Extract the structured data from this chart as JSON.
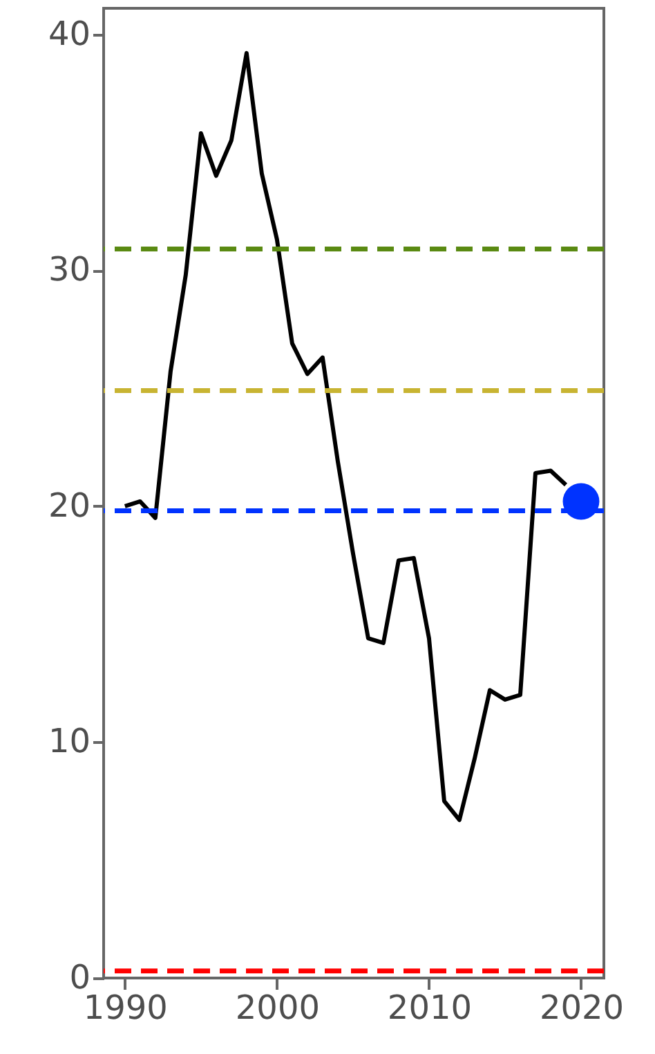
{
  "chart_data": {
    "type": "line",
    "x": [
      1990,
      1991,
      1992,
      1993,
      1994,
      1995,
      1996,
      1997,
      1998,
      1999,
      2000,
      2001,
      2002,
      2003,
      2004,
      2005,
      2006,
      2007,
      2008,
      2009,
      2010,
      2011,
      2012,
      2013,
      2014,
      2015,
      2016,
      2017,
      2018,
      2019
    ],
    "series": [
      {
        "color": "#000000",
        "values": [
          20.0,
          20.2,
          19.5,
          25.7,
          29.8,
          35.8,
          34.0,
          35.5,
          39.2,
          34.1,
          31.3,
          26.9,
          25.6,
          26.3,
          21.9,
          18.0,
          14.4,
          14.2,
          17.7,
          17.8,
          14.4,
          7.5,
          6.7,
          9.3,
          12.2,
          11.8,
          12.0,
          21.4,
          21.5,
          20.9
        ]
      },
      {
        "type": "scatter",
        "marker": "circle",
        "color": "#0033ff",
        "x": [
          2020
        ],
        "values": [
          20.2
        ]
      }
    ],
    "xlim": [
      1988.6,
      2021.5
    ],
    "xticks": [
      1990,
      2000,
      2010,
      2020
    ],
    "ylim": [
      0,
      41.1
    ],
    "yticks": [
      0,
      10,
      20,
      30,
      40
    ],
    "marker": "none",
    "line_style": "solid",
    "ref_lines": [
      {
        "axis": "y",
        "value": 30.9,
        "color": "#5a8a12",
        "line_style": "dashed"
      },
      {
        "axis": "y",
        "value": 24.9,
        "color": "#c8b432",
        "line_style": "dashed"
      },
      {
        "axis": "y",
        "value": 19.8,
        "color": "#0033ff",
        "line_style": "dashed"
      },
      {
        "axis": "y",
        "value": 0.3,
        "color": "#ff0000",
        "line_style": "dashed"
      }
    ]
  }
}
